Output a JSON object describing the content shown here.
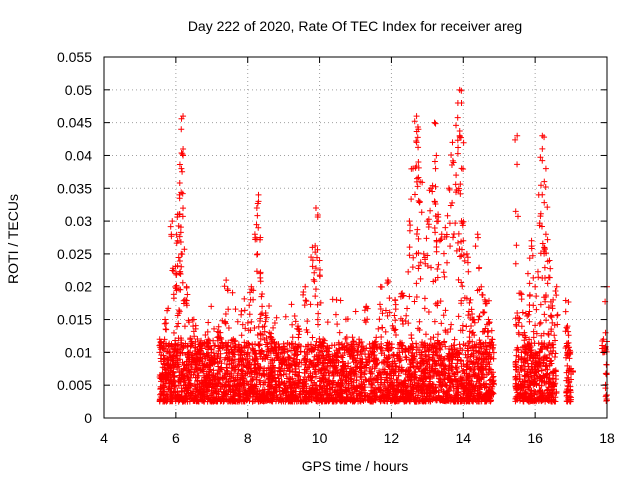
{
  "chart_data": {
    "type": "scatter",
    "title": "Day 222 of 2020, Rate Of TEC Index for receiver areg",
    "xlabel": "GPS time / hours",
    "ylabel": "ROTI / TECUs",
    "xlim": [
      4,
      18
    ],
    "ylim": [
      0,
      0.055
    ],
    "x_ticks": [
      "4",
      "6",
      "8",
      "10",
      "12",
      "14",
      "16",
      "18"
    ],
    "y_ticks": [
      "0",
      "0.005",
      "0.01",
      "0.015",
      "0.02",
      "0.025",
      "0.03",
      "0.035",
      "0.04",
      "0.045",
      "0.05",
      "0.055"
    ],
    "grid": true,
    "marker": "+",
    "color": "#ff0000",
    "series": [
      {
        "name": "ROTI",
        "x": [
          5.55,
          5.6,
          5.7,
          5.8,
          5.9,
          6.0,
          6.05,
          6.1,
          6.15,
          6.2,
          6.25,
          6.3,
          6.4,
          6.5,
          6.6,
          6.7,
          6.8,
          6.9,
          7.0,
          7.2,
          7.4,
          7.6,
          7.8,
          8.0,
          8.1,
          8.2,
          8.3,
          8.35,
          8.4,
          8.5,
          8.6,
          8.7,
          8.8,
          9.0,
          9.2,
          9.4,
          9.6,
          9.8,
          9.9,
          10.0,
          10.1,
          10.3,
          10.5,
          10.7,
          10.9,
          11.1,
          11.3,
          11.5,
          11.7,
          11.9,
          12.1,
          12.3,
          12.5,
          12.6,
          12.7,
          12.75,
          12.8,
          12.9,
          13.0,
          13.1,
          13.2,
          13.25,
          13.3,
          13.4,
          13.5,
          13.6,
          13.7,
          13.8,
          13.85,
          13.9,
          13.95,
          14.0,
          14.1,
          14.2,
          14.3,
          14.4,
          14.5,
          14.6,
          14.7,
          14.8,
          15.5,
          15.6,
          15.7,
          15.8,
          15.9,
          16.0,
          16.1,
          16.2,
          16.25,
          16.3,
          16.4,
          16.5,
          16.6,
          16.9,
          17.0,
          17.9,
          18.0,
          6.2,
          6.15,
          13.95,
          12.7,
          13.2,
          15.5,
          16.2,
          9.9,
          8.3,
          13.9,
          12.75,
          16.3,
          6.05
        ],
        "y": [
          0.012,
          0.006,
          0.015,
          0.008,
          0.03,
          0.022,
          0.027,
          0.034,
          0.025,
          0.04,
          0.018,
          0.02,
          0.012,
          0.015,
          0.009,
          0.011,
          0.008,
          0.012,
          0.009,
          0.013,
          0.021,
          0.012,
          0.009,
          0.01,
          0.02,
          0.028,
          0.033,
          0.022,
          0.017,
          0.016,
          0.013,
          0.012,
          0.01,
          0.009,
          0.008,
          0.014,
          0.02,
          0.026,
          0.032,
          0.024,
          0.012,
          0.009,
          0.01,
          0.008,
          0.011,
          0.012,
          0.017,
          0.011,
          0.02,
          0.021,
          0.018,
          0.019,
          0.03,
          0.038,
          0.046,
          0.044,
          0.036,
          0.025,
          0.03,
          0.035,
          0.045,
          0.04,
          0.03,
          0.028,
          0.029,
          0.035,
          0.042,
          0.037,
          0.048,
          0.05,
          0.03,
          0.027,
          0.025,
          0.018,
          0.015,
          0.028,
          0.02,
          0.018,
          0.015,
          0.012,
          0.016,
          0.019,
          0.013,
          0.022,
          0.027,
          0.02,
          0.034,
          0.043,
          0.026,
          0.038,
          0.024,
          0.018,
          0.02,
          0.014,
          0.007,
          0.012,
          0.02,
          0.046,
          0.044,
          0.048,
          0.042,
          0.033,
          0.043,
          0.041,
          0.032,
          0.034,
          0.043,
          0.039,
          0.028,
          0.031
        ]
      }
    ],
    "notes_visible_only": "dense band of points between 0.002 and 0.01 across all data spans"
  }
}
